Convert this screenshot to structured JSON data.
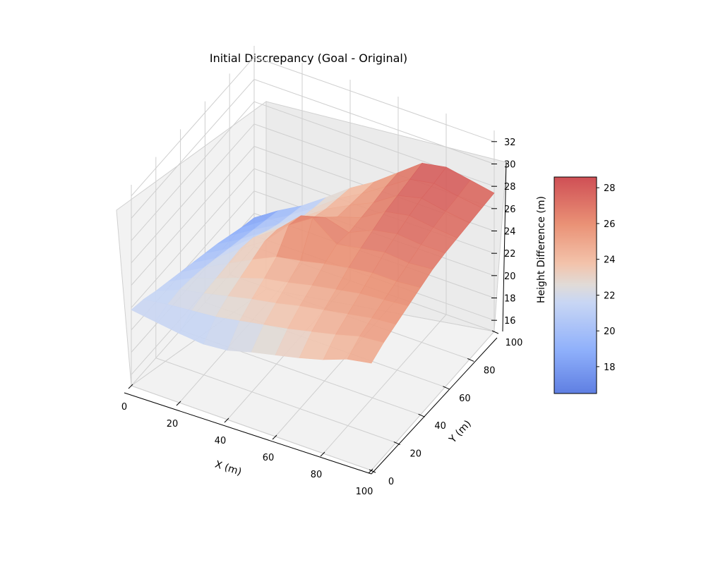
{
  "chart_data": {
    "type": "surface3d",
    "title": "Initial Discrepancy (Goal - Original)",
    "xlabel": "X (m)",
    "ylabel": "Y (m)",
    "zlabel": "Height Difference (m)",
    "xlim": [
      0,
      100
    ],
    "ylim": [
      0,
      100
    ],
    "zlim": [
      15,
      33
    ],
    "xticks": [
      0,
      20,
      40,
      60,
      80,
      100
    ],
    "yticks": [
      0,
      20,
      40,
      60,
      80,
      100
    ],
    "zticks": [
      16,
      18,
      20,
      22,
      24,
      26,
      28,
      30,
      32
    ],
    "colormap": "coolwarm",
    "colorbar": {
      "min": 16.5,
      "max": 28.6,
      "ticks": [
        18,
        20,
        22,
        24,
        26,
        28
      ]
    },
    "grid": true,
    "x": [
      0,
      10,
      20,
      30,
      40,
      50,
      60,
      70,
      80,
      90,
      100
    ],
    "y": [
      0,
      10,
      20,
      30,
      40,
      50,
      60,
      70,
      80,
      90,
      100
    ],
    "z": [
      [
        21.8,
        21.5,
        21.2,
        21.0,
        21.2,
        21.8,
        22.3,
        22.8,
        23.4,
        24.2,
        24.6
      ],
      [
        21.5,
        21.8,
        22.0,
        22.2,
        22.6,
        23.0,
        23.4,
        23.9,
        24.4,
        25.0,
        25.2
      ],
      [
        21.0,
        21.9,
        22.3,
        22.8,
        23.3,
        23.7,
        24.2,
        24.6,
        25.0,
        25.4,
        25.6
      ],
      [
        20.6,
        21.7,
        22.4,
        23.2,
        23.9,
        24.3,
        24.8,
        25.2,
        25.6,
        25.8,
        26.0
      ],
      [
        20.2,
        21.4,
        22.5,
        23.6,
        24.6,
        25.0,
        25.5,
        25.9,
        26.2,
        26.2,
        26.4
      ],
      [
        19.8,
        21.0,
        22.6,
        24.0,
        26.2,
        27.6,
        26.0,
        26.4,
        26.8,
        26.6,
        26.8
      ],
      [
        19.4,
        20.6,
        22.3,
        23.8,
        25.8,
        26.4,
        25.8,
        26.8,
        27.2,
        27.0,
        27.0
      ],
      [
        19.0,
        20.2,
        21.6,
        23.0,
        24.4,
        25.2,
        25.9,
        27.2,
        27.6,
        27.3,
        27.1
      ],
      [
        18.5,
        19.8,
        21.0,
        22.4,
        23.9,
        25.0,
        26.0,
        27.4,
        27.9,
        27.5,
        27.2
      ],
      [
        18.0,
        19.4,
        20.6,
        22.0,
        23.6,
        24.8,
        26.2,
        27.6,
        28.0,
        27.6,
        27.3
      ],
      [
        17.6,
        19.0,
        20.2,
        21.7,
        23.3,
        24.6,
        26.2,
        27.8,
        28.2,
        27.8,
        27.4
      ]
    ]
  }
}
